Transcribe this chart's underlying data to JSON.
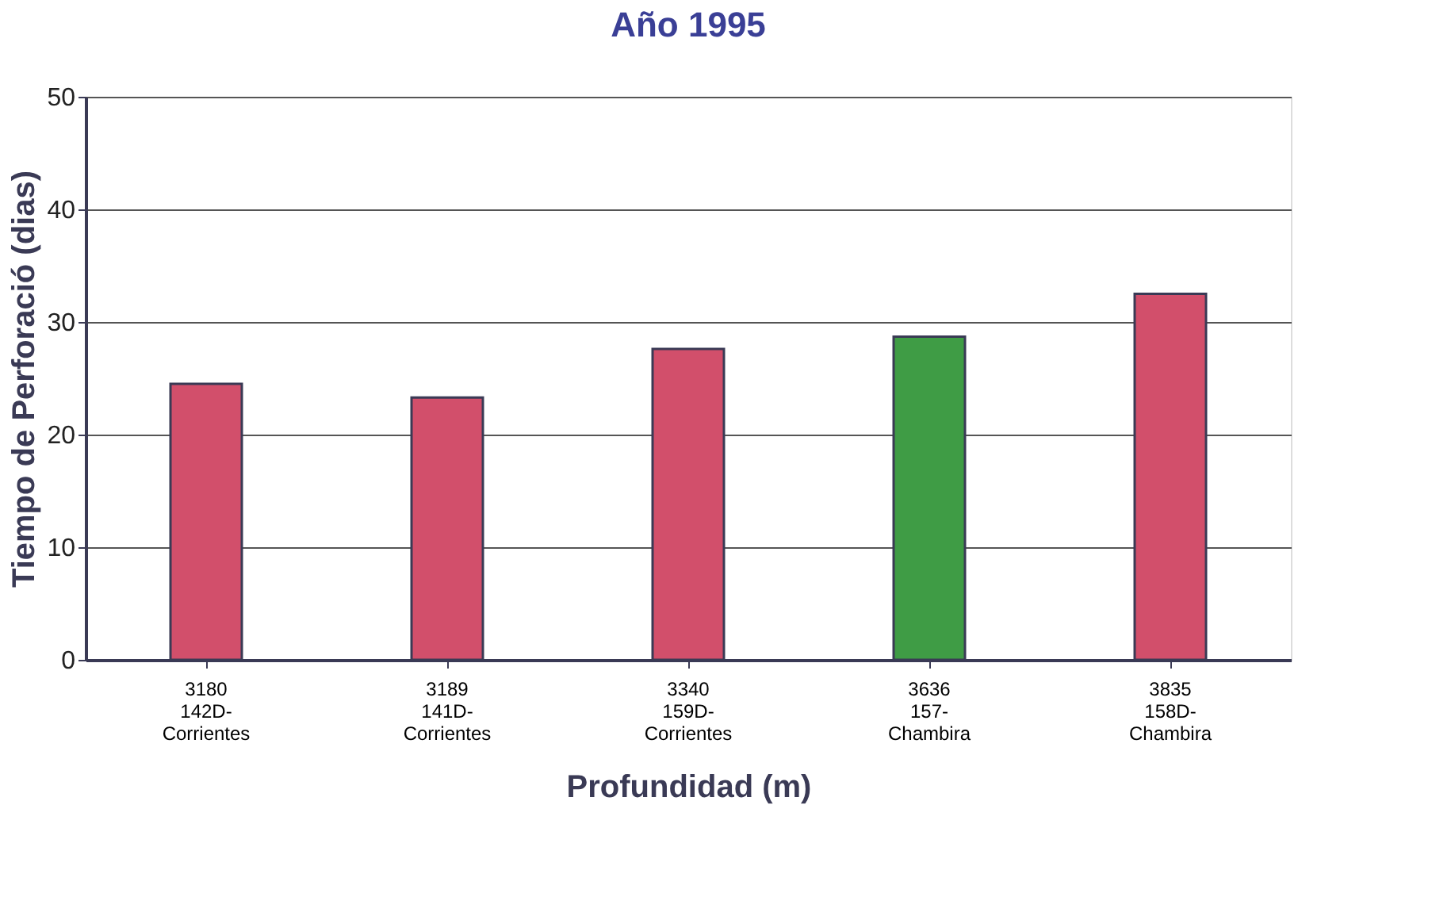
{
  "chart_data": {
    "type": "bar",
    "title": "Año 1995",
    "xlabel": "Profundidad (m)",
    "ylabel": "Tiempo de Perforació (dias)",
    "categories": [
      "3180\n142D-\nCorrientes",
      "3189\n141D-\nCorrientes",
      "3340\n159D-\nCorrientes",
      "3636\n157-\nChambira",
      "3835\n158D-\nChambira"
    ],
    "values": [
      24.5,
      23.3,
      27.6,
      28.7,
      32.5
    ],
    "colors": [
      "#d24f6b",
      "#d24f6b",
      "#d24f6b",
      "#3f9c45",
      "#d24f6b"
    ],
    "ylim": [
      0,
      50
    ],
    "yticks": [
      0,
      10,
      20,
      30,
      40,
      50
    ],
    "grid": "y"
  }
}
